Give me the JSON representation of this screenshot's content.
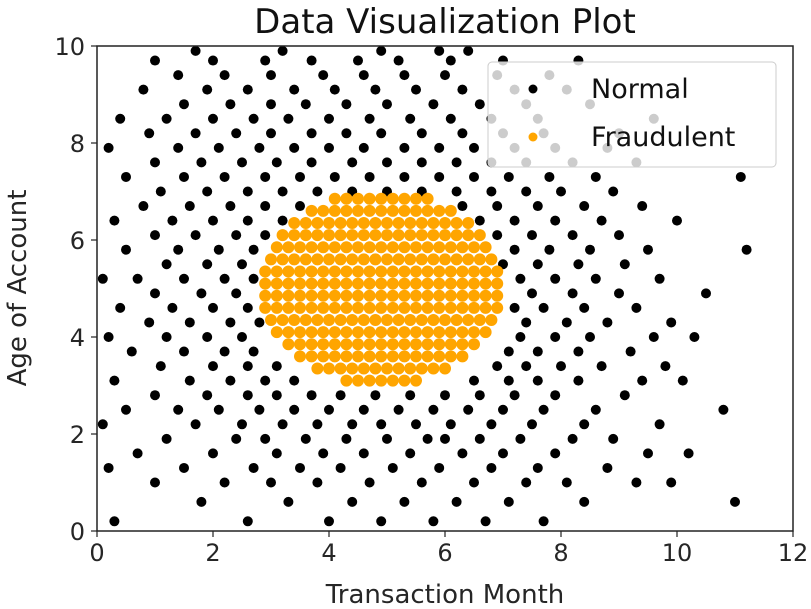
{
  "chart_data": {
    "type": "scatter",
    "title": "Data Visualization Plot",
    "xlabel": "Transaction Month",
    "ylabel": "Age of Account",
    "xlim": [
      0,
      12
    ],
    "ylim": [
      0,
      10
    ],
    "xticks": [
      "0",
      "2",
      "4",
      "6",
      "8",
      "10",
      "12"
    ],
    "yticks": [
      "0",
      "2",
      "4",
      "6",
      "8",
      "10"
    ],
    "grid": false,
    "legend_position": "top-right",
    "series": [
      {
        "name": "Normal",
        "color": "#000000",
        "rows": [
          {
            "y": 0.2,
            "x": [
              0.3,
              2.6,
              4.0,
              4.9,
              5.8,
              6.7,
              7.7
            ]
          },
          {
            "y": 0.6,
            "x": [
              1.8,
              3.3,
              4.4,
              5.3,
              6.2,
              7.1,
              8.4,
              11.0
            ]
          },
          {
            "y": 1.0,
            "x": [
              1.0,
              2.2,
              3.0,
              3.8,
              4.7,
              5.6,
              6.5,
              7.4,
              8.1,
              9.3,
              9.9
            ]
          },
          {
            "y": 1.3,
            "x": [
              0.2,
              1.5,
              2.7,
              3.5,
              4.2,
              5.1,
              5.9,
              6.8,
              7.6,
              8.8
            ]
          },
          {
            "y": 1.6,
            "x": [
              0.7,
              2.0,
              3.1,
              3.9,
              4.6,
              5.4,
              6.3,
              7.0,
              7.9,
              9.5,
              10.2
            ]
          },
          {
            "y": 1.9,
            "x": [
              1.2,
              2.4,
              2.9,
              3.6,
              4.3,
              5.0,
              5.7,
              6.0,
              6.6,
              7.3,
              8.2,
              8.9
            ]
          },
          {
            "y": 2.2,
            "x": [
              0.1,
              1.7,
              2.5,
              3.2,
              3.8,
              4.4,
              4.9,
              5.5,
              6.1,
              6.8,
              7.5,
              8.4,
              9.7
            ]
          },
          {
            "y": 2.5,
            "x": [
              0.5,
              1.4,
              2.1,
              2.8,
              3.4,
              4.0,
              4.6,
              5.2,
              5.8,
              6.4,
              7.0,
              7.7,
              8.6,
              10.8
            ]
          },
          {
            "y": 2.8,
            "x": [
              1.0,
              1.9,
              2.6,
              3.1,
              3.7,
              4.2,
              4.8,
              5.4,
              6.0,
              6.6,
              7.2,
              7.9,
              9.1
            ]
          },
          {
            "y": 3.1,
            "x": [
              0.3,
              1.6,
              2.3,
              2.9,
              3.4,
              6.5,
              7.1,
              7.6,
              8.3,
              9.4,
              10.1
            ]
          },
          {
            "y": 3.4,
            "x": [
              1.1,
              2.0,
              2.6,
              3.1,
              6.9,
              7.4,
              8.0,
              8.7,
              9.8
            ]
          },
          {
            "y": 3.7,
            "x": [
              0.6,
              1.5,
              2.2,
              2.7,
              7.1,
              7.6,
              8.3,
              9.2
            ]
          },
          {
            "y": 4.0,
            "x": [
              0.2,
              1.2,
              1.9,
              2.5,
              7.3,
              7.9,
              8.5,
              9.6,
              10.3
            ]
          },
          {
            "y": 4.3,
            "x": [
              0.9,
              1.6,
              2.3,
              2.8,
              7.4,
              8.1,
              8.8,
              9.9
            ]
          },
          {
            "y": 4.6,
            "x": [
              0.4,
              1.3,
              2.0,
              2.6,
              7.2,
              7.7,
              8.4,
              9.3
            ]
          },
          {
            "y": 4.9,
            "x": [
              1.0,
              1.8,
              2.4,
              7.5,
              8.2,
              9.0,
              10.5
            ]
          },
          {
            "y": 5.2,
            "x": [
              0.1,
              0.7,
              1.5,
              2.2,
              2.7,
              7.3,
              7.9,
              8.6,
              9.7
            ]
          },
          {
            "y": 5.5,
            "x": [
              1.2,
              1.9,
              2.5,
              7.0,
              7.6,
              8.3,
              9.1
            ]
          },
          {
            "y": 5.8,
            "x": [
              0.5,
              1.4,
              2.1,
              2.7,
              7.2,
              7.8,
              8.5,
              9.5,
              11.2
            ]
          },
          {
            "y": 6.1,
            "x": [
              1.0,
              1.7,
              2.4,
              2.9,
              6.9,
              7.5,
              8.2,
              9.0
            ]
          },
          {
            "y": 6.4,
            "x": [
              0.3,
              1.3,
              2.0,
              2.6,
              3.2,
              6.6,
              7.2,
              7.9,
              8.7,
              10.0
            ]
          },
          {
            "y": 6.7,
            "x": [
              0.8,
              1.6,
              2.3,
              2.9,
              3.5,
              6.3,
              6.9,
              7.6,
              8.4,
              9.4
            ]
          },
          {
            "y": 7.0,
            "x": [
              1.1,
              1.9,
              2.6,
              3.2,
              3.8,
              4.4,
              5.0,
              5.6,
              6.2,
              6.8,
              7.4,
              8.0,
              8.9
            ]
          },
          {
            "y": 7.3,
            "x": [
              0.5,
              1.5,
              2.2,
              2.9,
              3.5,
              4.1,
              4.7,
              5.3,
              5.9,
              6.5,
              7.1,
              7.8,
              8.6,
              11.1
            ]
          },
          {
            "y": 7.6,
            "x": [
              1.0,
              1.8,
              2.5,
              3.1,
              3.7,
              4.4,
              5.0,
              5.6,
              6.2,
              6.8,
              7.4,
              8.2,
              9.3
            ]
          },
          {
            "y": 7.9,
            "x": [
              0.2,
              1.4,
              2.1,
              2.8,
              3.4,
              4.0,
              4.6,
              5.3,
              5.9,
              6.5,
              7.2,
              7.9,
              8.8
            ]
          },
          {
            "y": 8.2,
            "x": [
              0.9,
              1.7,
              2.4,
              3.0,
              3.7,
              4.3,
              4.9,
              5.6,
              6.3,
              7.0,
              7.7,
              9.0
            ]
          },
          {
            "y": 8.5,
            "x": [
              0.4,
              1.2,
              2.0,
              2.7,
              3.3,
              4.0,
              4.7,
              5.4,
              6.1,
              6.8,
              7.6,
              9.6
            ]
          },
          {
            "y": 8.8,
            "x": [
              1.5,
              2.3,
              3.0,
              3.6,
              4.3,
              5.0,
              5.8,
              6.6,
              7.4,
              8.5
            ]
          },
          {
            "y": 9.1,
            "x": [
              0.8,
              1.9,
              2.6,
              3.4,
              4.1,
              4.8,
              5.5,
              6.3,
              7.2,
              8.1
            ]
          },
          {
            "y": 9.4,
            "x": [
              1.4,
              2.2,
              3.0,
              3.9,
              4.6,
              5.3,
              6.0,
              6.9,
              7.8
            ]
          },
          {
            "y": 9.7,
            "x": [
              1.0,
              2.0,
              2.9,
              3.7,
              4.5,
              5.2,
              6.1,
              7.0,
              8.3
            ]
          },
          {
            "y": 9.9,
            "x": [
              1.7,
              3.2,
              4.9,
              5.9,
              6.4
            ]
          }
        ]
      },
      {
        "name": "Fraudulent",
        "color": "#FFA500",
        "rows": [
          {
            "y": 3.1,
            "x": [
              4.3,
              4.5,
              4.7,
              4.9,
              5.1,
              5.3,
              5.5
            ]
          },
          {
            "y": 3.35,
            "x": [
              3.8,
              4.0,
              4.2,
              4.4,
              4.6,
              4.8,
              5.0,
              5.2,
              5.4,
              5.6,
              5.8,
              6.0
            ]
          },
          {
            "y": 3.6,
            "x": [
              3.5,
              3.7,
              3.9,
              4.1,
              4.3,
              4.5,
              4.7,
              4.9,
              5.1,
              5.3,
              5.5,
              5.7,
              5.9,
              6.1,
              6.3
            ]
          },
          {
            "y": 3.85,
            "x": [
              3.3,
              3.5,
              3.7,
              3.9,
              4.1,
              4.3,
              4.5,
              4.7,
              4.9,
              5.1,
              5.3,
              5.5,
              5.7,
              5.9,
              6.1,
              6.3,
              6.5
            ]
          },
          {
            "y": 4.1,
            "x": [
              3.1,
              3.3,
              3.5,
              3.7,
              3.9,
              4.1,
              4.3,
              4.5,
              4.7,
              4.9,
              5.1,
              5.3,
              5.5,
              5.7,
              5.9,
              6.1,
              6.3,
              6.5,
              6.7
            ]
          },
          {
            "y": 4.35,
            "x": [
              3.0,
              3.2,
              3.4,
              3.6,
              3.8,
              4.0,
              4.2,
              4.4,
              4.6,
              4.8,
              5.0,
              5.2,
              5.4,
              5.6,
              5.8,
              6.0,
              6.2,
              6.4,
              6.6,
              6.8
            ]
          },
          {
            "y": 4.6,
            "x": [
              2.9,
              3.1,
              3.3,
              3.5,
              3.7,
              3.9,
              4.1,
              4.3,
              4.5,
              4.7,
              4.9,
              5.1,
              5.3,
              5.5,
              5.7,
              5.9,
              6.1,
              6.3,
              6.5,
              6.7,
              6.9
            ]
          },
          {
            "y": 4.85,
            "x": [
              2.9,
              3.1,
              3.3,
              3.5,
              3.7,
              3.9,
              4.1,
              4.3,
              4.5,
              4.7,
              4.9,
              5.1,
              5.3,
              5.5,
              5.7,
              5.9,
              6.1,
              6.3,
              6.5,
              6.7,
              6.9
            ]
          },
          {
            "y": 5.1,
            "x": [
              2.9,
              3.1,
              3.3,
              3.5,
              3.7,
              3.9,
              4.1,
              4.3,
              4.5,
              4.7,
              4.9,
              5.1,
              5.3,
              5.5,
              5.7,
              5.9,
              6.1,
              6.3,
              6.5,
              6.7,
              6.9
            ]
          },
          {
            "y": 5.35,
            "x": [
              2.9,
              3.1,
              3.3,
              3.5,
              3.7,
              3.9,
              4.1,
              4.3,
              4.5,
              4.7,
              4.9,
              5.1,
              5.3,
              5.5,
              5.7,
              5.9,
              6.1,
              6.3,
              6.5,
              6.7,
              6.9
            ]
          },
          {
            "y": 5.6,
            "x": [
              3.0,
              3.2,
              3.4,
              3.6,
              3.8,
              4.0,
              4.2,
              4.4,
              4.6,
              4.8,
              5.0,
              5.2,
              5.4,
              5.6,
              5.8,
              6.0,
              6.2,
              6.4,
              6.6,
              6.8
            ]
          },
          {
            "y": 5.85,
            "x": [
              3.1,
              3.3,
              3.5,
              3.7,
              3.9,
              4.1,
              4.3,
              4.5,
              4.7,
              4.9,
              5.1,
              5.3,
              5.5,
              5.7,
              5.9,
              6.1,
              6.3,
              6.5,
              6.7
            ]
          },
          {
            "y": 6.1,
            "x": [
              3.2,
              3.4,
              3.6,
              3.8,
              4.0,
              4.2,
              4.4,
              4.6,
              4.8,
              5.0,
              5.2,
              5.4,
              5.6,
              5.8,
              6.0,
              6.2,
              6.4,
              6.6
            ]
          },
          {
            "y": 6.35,
            "x": [
              3.4,
              3.6,
              3.8,
              4.0,
              4.2,
              4.4,
              4.6,
              4.8,
              5.0,
              5.2,
              5.4,
              5.6,
              5.8,
              6.0,
              6.2,
              6.4
            ]
          },
          {
            "y": 6.6,
            "x": [
              3.7,
              3.9,
              4.1,
              4.3,
              4.5,
              4.7,
              4.9,
              5.1,
              5.3,
              5.5,
              5.7,
              5.9,
              6.1
            ]
          },
          {
            "y": 6.85,
            "x": [
              4.1,
              4.3,
              4.5,
              4.7,
              4.9,
              5.1,
              5.3,
              5.5,
              5.7
            ]
          }
        ]
      }
    ]
  }
}
